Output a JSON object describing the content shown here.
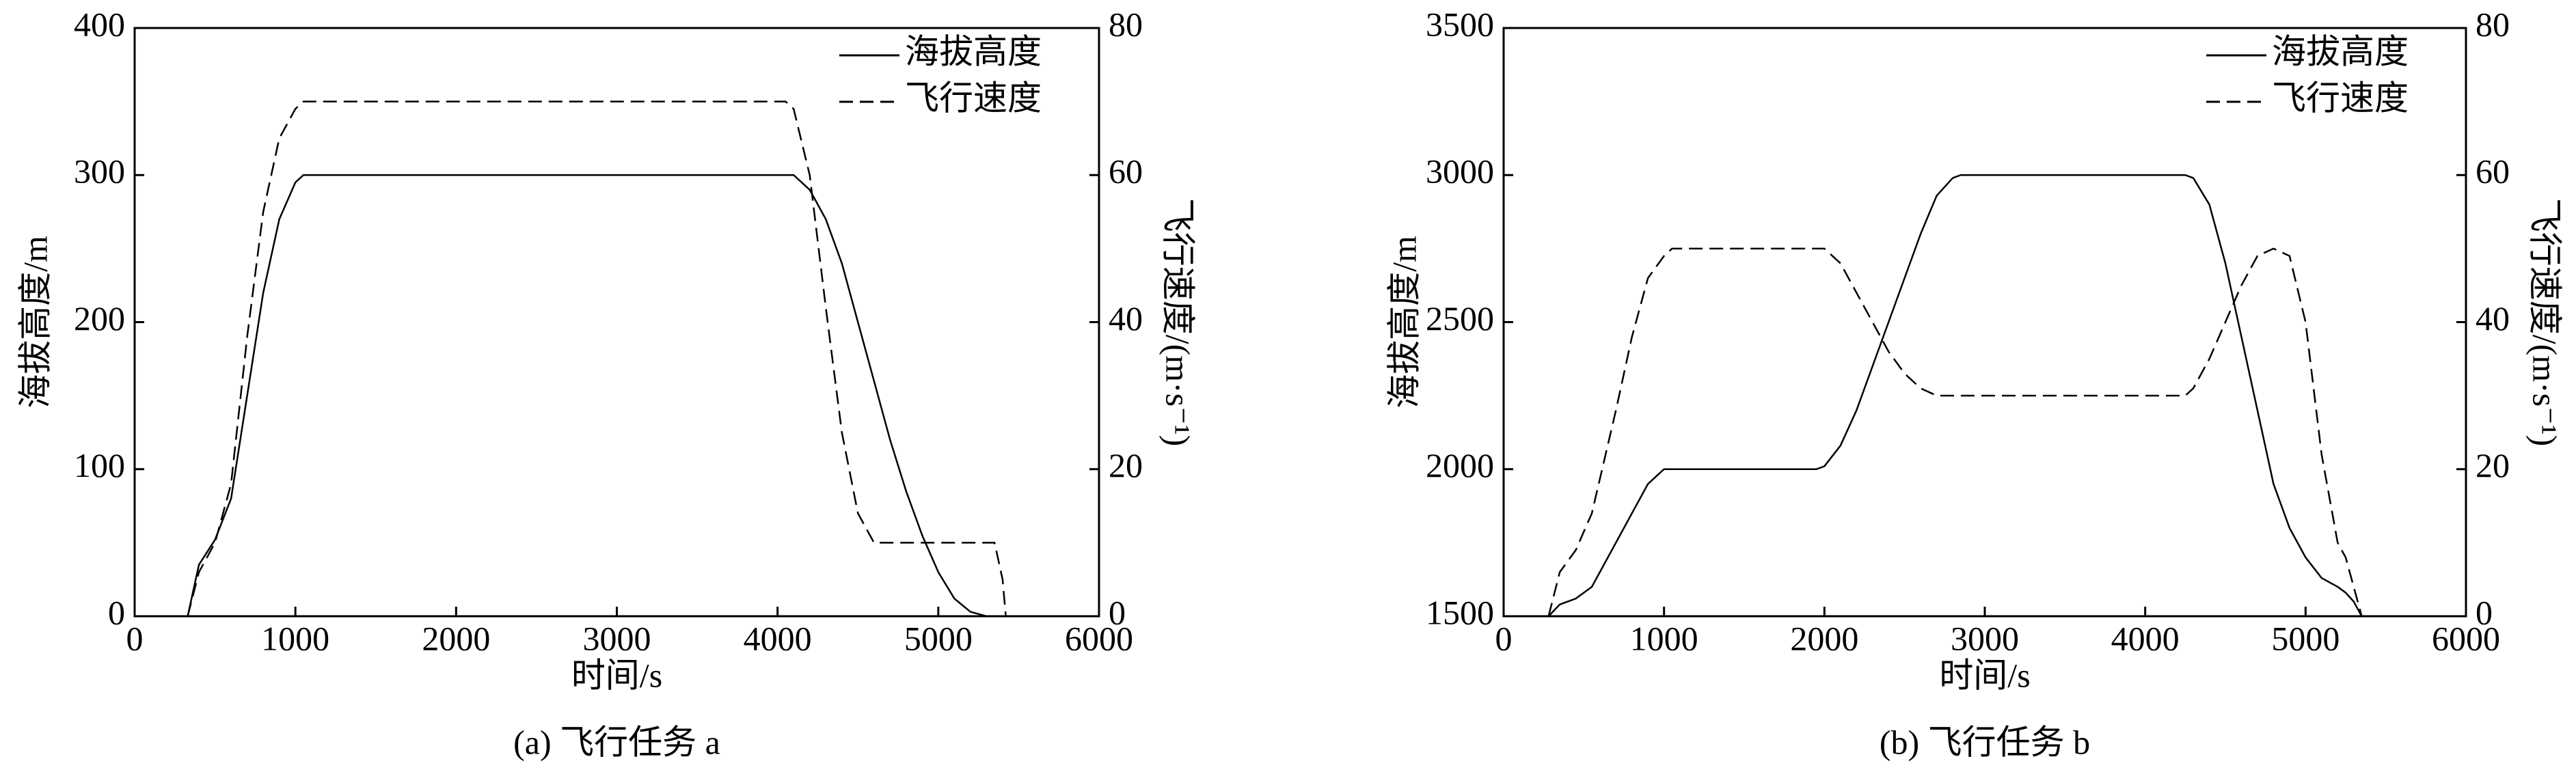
{
  "chart_data": [
    {
      "type": "line",
      "caption": "(a) 飞行任务 a",
      "x_label": "时间/s",
      "y_label": "海拔高度/m",
      "y2_label": "飞行速度/(m·s⁻¹)",
      "xlim": [
        0,
        6000
      ],
      "xticks": [
        0,
        1000,
        2000,
        3000,
        4000,
        5000,
        6000
      ],
      "ylim": [
        0,
        400
      ],
      "yticks": [
        0,
        100,
        200,
        300,
        400
      ],
      "y2lim": [
        0,
        80
      ],
      "y2ticks": [
        0,
        20,
        40,
        60,
        80
      ],
      "legend": "upper right",
      "x": [
        330,
        400,
        500,
        600,
        700,
        800,
        900,
        1000,
        1050,
        4050,
        4100,
        4200,
        4300,
        4400,
        4500,
        4600,
        4650,
        4700,
        4800,
        4900,
        5000,
        5100,
        5200,
        5300,
        5350,
        5400,
        5420
      ],
      "series": [
        {
          "name": "海拔高度",
          "color": "#000000",
          "linestyle": "solid",
          "values": [
            0,
            35,
            52,
            80,
            150,
            220,
            270,
            295,
            300,
            300,
            300,
            290,
            270,
            240,
            200,
            160,
            140,
            120,
            85,
            55,
            30,
            12,
            3,
            0,
            0,
            0,
            0
          ]
        },
        {
          "name": "飞行速度",
          "color": "#000000",
          "linestyle": "dashed",
          "axis": "y2",
          "values": [
            0,
            6,
            10,
            18,
            38,
            55,
            65,
            69,
            70,
            70,
            69,
            60,
            42,
            25,
            14,
            10,
            10,
            10,
            10,
            10,
            10,
            10,
            10,
            10,
            10,
            5,
            0
          ]
        }
      ]
    },
    {
      "type": "line",
      "caption": "(b) 飞行任务 b",
      "x_label": "时间/s",
      "y_label": "海拔高度/m",
      "y2_label": "飞行速度/(m·s⁻¹)",
      "xlim": [
        0,
        6000
      ],
      "xticks": [
        0,
        1000,
        2000,
        3000,
        4000,
        5000,
        6000
      ],
      "ylim": [
        1500,
        3500
      ],
      "yticks": [
        1500,
        2000,
        2500,
        3000,
        3500
      ],
      "y2lim": [
        0,
        80
      ],
      "y2ticks": [
        0,
        20,
        40,
        60,
        80
      ],
      "legend": "upper right",
      "x": [
        280,
        350,
        450,
        550,
        700,
        800,
        900,
        1000,
        1050,
        1950,
        2000,
        2100,
        2200,
        2300,
        2400,
        2500,
        2600,
        2700,
        2800,
        2850,
        4250,
        4300,
        4400,
        4500,
        4600,
        4700,
        4800,
        4900,
        5000,
        5100,
        5200,
        5250,
        5300,
        5350
      ],
      "series": [
        {
          "name": "海拔高度",
          "color": "#000000",
          "linestyle": "solid",
          "values": [
            1500,
            1540,
            1560,
            1600,
            1750,
            1850,
            1950,
            2000,
            2000,
            2000,
            2010,
            2080,
            2200,
            2350,
            2500,
            2650,
            2800,
            2930,
            2990,
            3000,
            3000,
            2990,
            2900,
            2700,
            2450,
            2200,
            1950,
            1800,
            1700,
            1630,
            1600,
            1580,
            1550,
            1500
          ]
        },
        {
          "name": "飞行速度",
          "color": "#000000",
          "linestyle": "dashed",
          "axis": "y2",
          "values": [
            0,
            6,
            9,
            14,
            28,
            38,
            46,
            49,
            50,
            50,
            50,
            48,
            44,
            40,
            36,
            33,
            31,
            30,
            30,
            30,
            30,
            31,
            35,
            40,
            45,
            49,
            50,
            49,
            40,
            22,
            10,
            8,
            4,
            0
          ]
        }
      ]
    }
  ]
}
